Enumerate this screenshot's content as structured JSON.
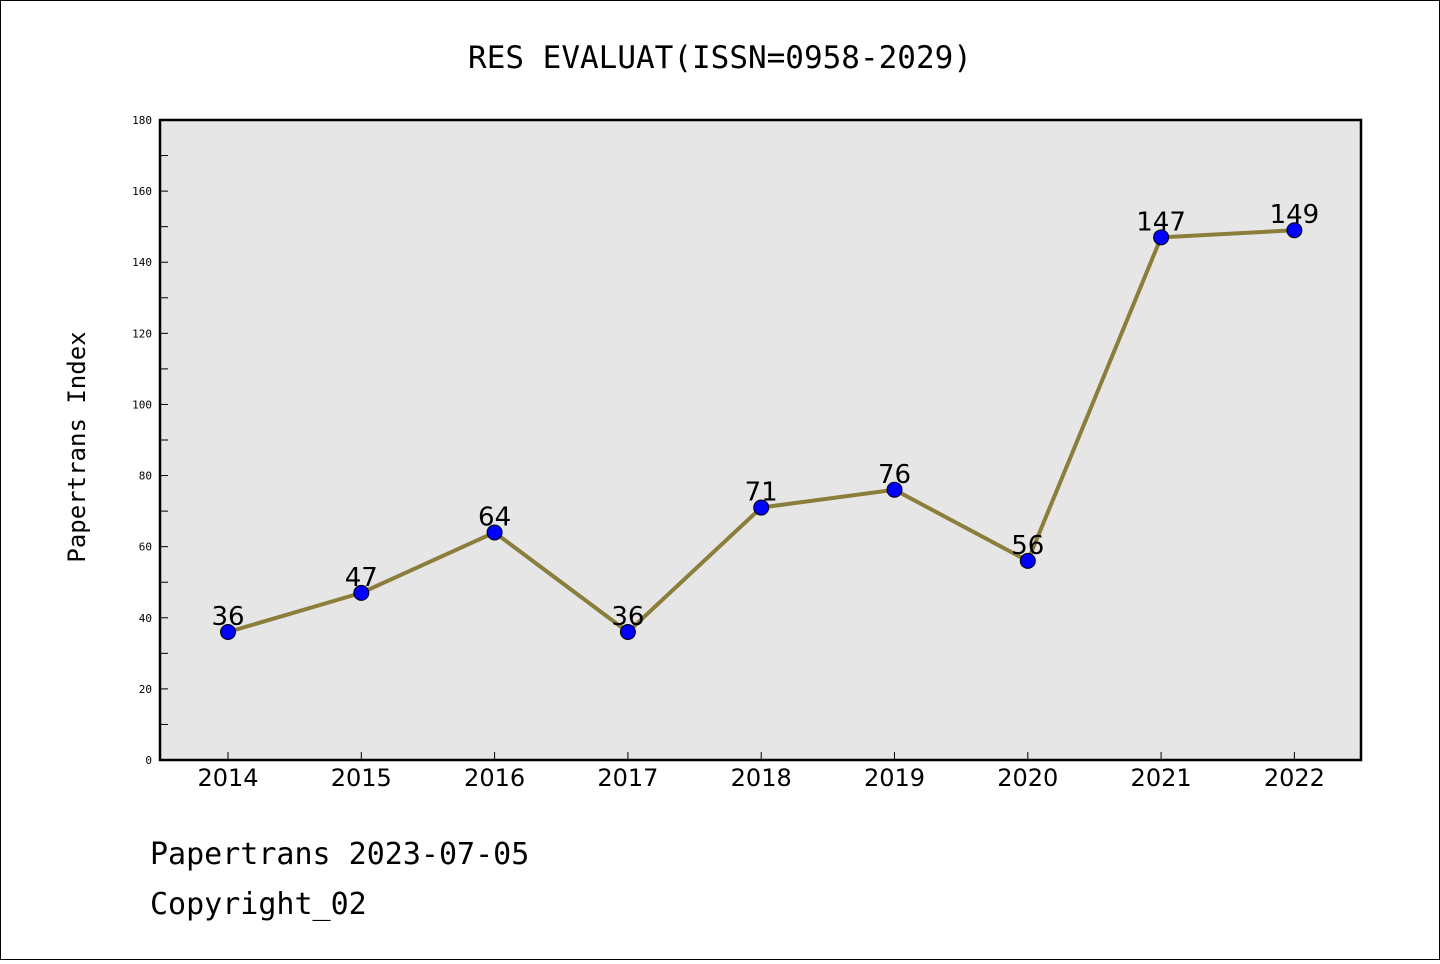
{
  "chart_data": {
    "type": "line",
    "title": "RES EVALUAT(ISSN=0958-2029)",
    "xlabel": "",
    "ylabel": "Papertrans Index",
    "categories": [
      "2014",
      "2015",
      "2016",
      "2017",
      "2018",
      "2019",
      "2020",
      "2021",
      "2022"
    ],
    "values": [
      36,
      47,
      64,
      36,
      71,
      76,
      56,
      147,
      149
    ],
    "ylim": [
      0,
      180
    ],
    "yticks": [
      0,
      20,
      40,
      60,
      80,
      100,
      120,
      140,
      160,
      180
    ],
    "grid": false,
    "show_data_labels": true,
    "colors": {
      "line": "#8B7D3A",
      "marker": "#0000FF",
      "plot_background": "#E6E6E6"
    }
  },
  "footer": {
    "line1": "Papertrans 2023-07-05",
    "line2": "Copyright_02"
  }
}
